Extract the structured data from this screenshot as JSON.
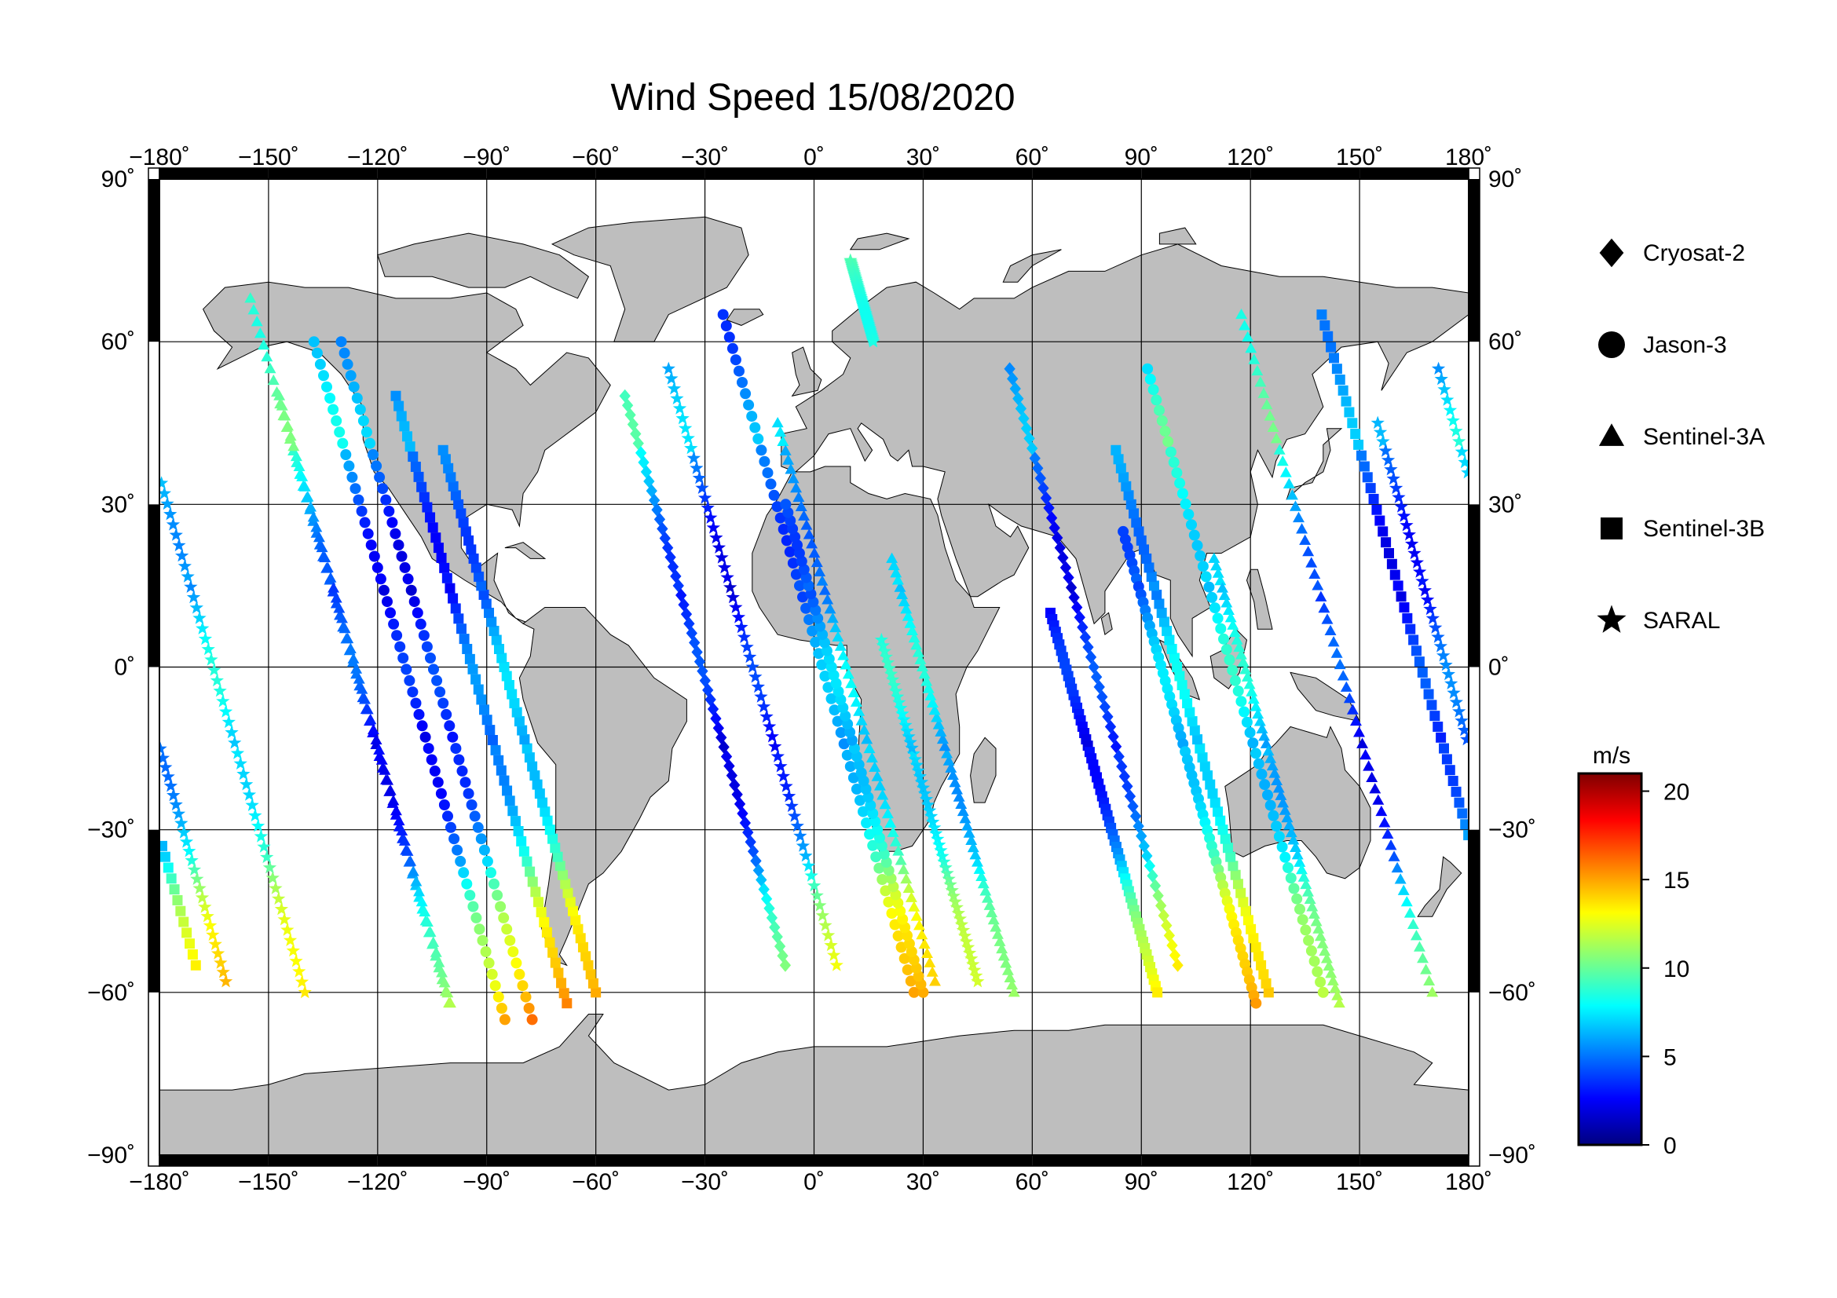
{
  "title": "Wind Speed 15/08/2020",
  "map": {
    "projection": "equirectangular",
    "lon_range": [
      -180,
      180
    ],
    "lat_range": [
      -90,
      90
    ],
    "land_color": "#bebebe",
    "ocean_color": "#ffffff",
    "grid": true,
    "lon_ticks": [
      "−180˚",
      "−150˚",
      "−120˚",
      "−90˚",
      "−60˚",
      "−30˚",
      "0˚",
      "30˚",
      "60˚",
      "90˚",
      "120˚",
      "150˚",
      "180˚"
    ],
    "lat_ticks": [
      "90˚",
      "60˚",
      "30˚",
      "0˚",
      "−30˚",
      "−60˚",
      "−90˚"
    ]
  },
  "legend": {
    "placement": "right",
    "items": [
      {
        "label": "Cryosat-2",
        "marker": "diamond"
      },
      {
        "label": "Jason-3",
        "marker": "circle"
      },
      {
        "label": "Sentinel-3A",
        "marker": "triangle"
      },
      {
        "label": "Sentinel-3B",
        "marker": "square"
      },
      {
        "label": "SARAL",
        "marker": "star"
      }
    ]
  },
  "colorbar": {
    "unit": "m/s",
    "min": 0,
    "max": 21,
    "ticks": [
      "20",
      "15",
      "10",
      "5",
      "0"
    ],
    "colormap": "jet"
  },
  "chart_data": {
    "type": "scatter",
    "title": "Wind Speed 15/08/2020",
    "x_domain": "longitude",
    "y_domain": "latitude",
    "value_unit": "m/s",
    "series": [
      {
        "name": "Cryosat-2",
        "marker": "diamond",
        "tracks": [
          {
            "lon0": -52,
            "dir": 1,
            "lat_start": 50,
            "lat_end": -55
          },
          {
            "lon0": 100,
            "dir": -1,
            "lat_start": -55,
            "lat_end": 55
          }
        ]
      },
      {
        "name": "Jason-3",
        "marker": "circle",
        "tracks": [
          {
            "lon0": -130,
            "dir": 1,
            "lat_start": 60,
            "lat_end": -65
          },
          {
            "lon0": -85,
            "dir": -1,
            "lat_start": -65,
            "lat_end": 60
          },
          {
            "lon0": -25,
            "dir": 1,
            "lat_start": 65,
            "lat_end": -60
          },
          {
            "lon0": 30,
            "dir": -1,
            "lat_start": -60,
            "lat_end": 30
          },
          {
            "lon0": 85,
            "dir": 1,
            "lat_start": 25,
            "lat_end": -62
          },
          {
            "lon0": 140,
            "dir": -1,
            "lat_start": -60,
            "lat_end": 55
          }
        ]
      },
      {
        "name": "Sentinel-3A",
        "marker": "triangle",
        "tracks": [
          {
            "lon0": -155,
            "dir": 1,
            "lat_start": 68,
            "lat_end": -62
          },
          {
            "lon0": -100,
            "dir": -1,
            "lat_start": -62,
            "lat_end": 50
          },
          {
            "lon0": -10,
            "dir": 1,
            "lat_start": 45,
            "lat_end": -58
          },
          {
            "lon0": 55,
            "dir": -1,
            "lat_start": -60,
            "lat_end": 20
          },
          {
            "lon0": 110,
            "dir": 1,
            "lat_start": 20,
            "lat_end": -62
          },
          {
            "lon0": 170,
            "dir": -1,
            "lat_start": -60,
            "lat_end": 65
          }
        ]
      },
      {
        "name": "Sentinel-3B",
        "marker": "square",
        "tracks": [
          {
            "lon0": -170,
            "dir": -1,
            "lat_start": -55,
            "lat_end": 65
          },
          {
            "lon0": -115,
            "dir": 1,
            "lat_start": 50,
            "lat_end": -62
          },
          {
            "lon0": -60,
            "dir": -1,
            "lat_start": -60,
            "lat_end": 40
          },
          {
            "lon0": 65,
            "dir": 1,
            "lat_start": 10,
            "lat_end": -60
          },
          {
            "lon0": 125,
            "dir": -1,
            "lat_start": -60,
            "lat_end": 40
          }
        ]
      },
      {
        "name": "SARAL",
        "marker": "star",
        "tracks": [
          {
            "lon0": -140,
            "dir": -1,
            "lat_start": -60,
            "lat_end": 55
          },
          {
            "lon0": -40,
            "dir": 1,
            "lat_start": 55,
            "lat_end": -55
          },
          {
            "lon0": 10,
            "dir": 1,
            "lat_start": 75,
            "lat_end": 60
          },
          {
            "lon0": 45,
            "dir": -1,
            "lat_start": -58,
            "lat_end": 5
          },
          {
            "lon0": 155,
            "dir": 1,
            "lat_start": 45,
            "lat_end": -58
          }
        ]
      }
    ]
  }
}
